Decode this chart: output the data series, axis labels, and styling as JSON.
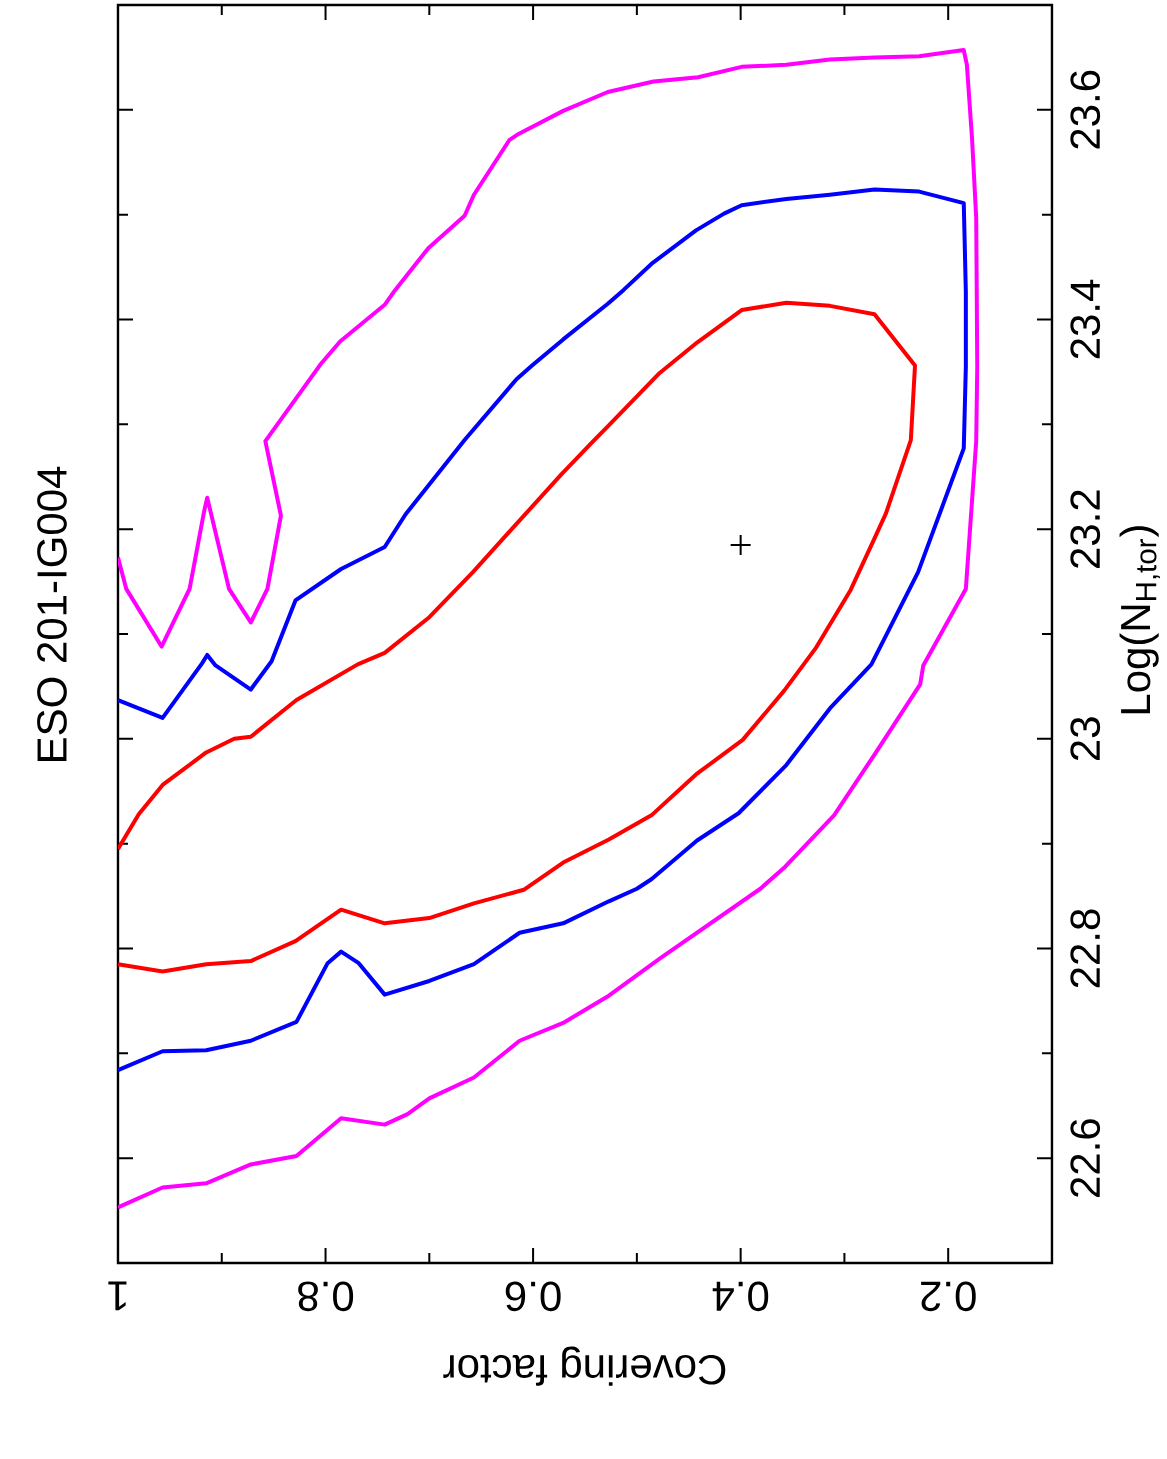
{
  "chart_data": {
    "type": "line",
    "title": "ESO 201-IG004",
    "xlabel": "Covering factor",
    "ylabel": "Log(N$_{H,tor}$)",
    "xlim": [
      1,
      0.1
    ],
    "ylim": [
      22.5,
      23.7
    ],
    "xticks": [
      1,
      {
        "value": 0.9,
        "label": null
      },
      0.8,
      {
        "value": 0.7,
        "label": null
      },
      0.6,
      {
        "value": 0.5,
        "label": null
      },
      0.4,
      {
        "value": 0.3,
        "label": null
      },
      0.2
    ],
    "yticks": [
      22.6,
      {
        "value": 22.7,
        "label": null
      },
      22.8,
      {
        "value": 22.9,
        "label": null
      },
      23,
      {
        "value": 23.1,
        "label": null
      },
      23.2,
      {
        "value": 23.3,
        "label": null
      },
      23.4,
      {
        "value": 23.5,
        "label": null
      },
      23.6
    ],
    "series": [
      {
        "color": "#ff0000",
        "values": [
          22.895,
          22.928,
          22.956,
          22.987,
          23.0,
          23.002,
          23.037,
          23.071,
          23.082,
          23.116,
          23.159,
          23.205,
          23.252,
          23.284,
          23.298,
          23.349,
          23.378,
          23.409,
          23.416,
          23.413,
          23.405,
          23.356,
          23.285,
          23.215,
          23.189,
          23.142,
          23.086,
          23.046,
          22.999,
          22.966,
          22.927,
          22.904,
          22.882,
          22.856,
          22.843,
          22.829,
          22.824,
          22.837,
          22.807,
          22.788,
          22.785,
          22.778,
          22.785
        ],
        "x": [
          1,
          0.98,
          0.957,
          0.915,
          0.888,
          0.872,
          0.828,
          0.769,
          0.743,
          0.7,
          0.658,
          0.616,
          0.573,
          0.542,
          0.528,
          0.478,
          0.442,
          0.399,
          0.356,
          0.314,
          0.271,
          0.232,
          0.236,
          0.26,
          0.272,
          0.294,
          0.328,
          0.358,
          0.398,
          0.443,
          0.486,
          0.527,
          0.571,
          0.609,
          0.657,
          0.7,
          0.743,
          0.785,
          0.829,
          0.872,
          0.915,
          0.957,
          1
        ]
      },
      {
        "color": "#0000ff",
        "values": [
          23.037,
          23.02,
          23.072,
          23.08,
          23.07,
          23.047,
          23.074,
          23.132,
          23.162,
          23.183,
          23.214,
          23.285,
          23.343,
          23.356,
          23.381,
          23.415,
          23.428,
          23.453,
          23.485,
          23.501,
          23.509,
          23.515,
          23.519,
          23.524,
          23.522,
          23.511,
          23.426,
          23.355,
          23.277,
          23.159,
          23.071,
          23.029,
          22.975,
          22.929,
          22.903,
          22.866,
          22.857,
          22.845,
          22.824,
          22.815,
          22.785,
          22.769,
          22.756,
          22.786,
          22.797,
          22.786,
          22.73,
          22.712,
          22.703,
          22.702,
          22.684
        ],
        "x": [
          1,
          0.957,
          0.919,
          0.914,
          0.906,
          0.872,
          0.852,
          0.829,
          0.785,
          0.743,
          0.723,
          0.666,
          0.616,
          0.601,
          0.571,
          0.528,
          0.513,
          0.486,
          0.443,
          0.416,
          0.399,
          0.356,
          0.314,
          0.271,
          0.228,
          0.185,
          0.183,
          0.183,
          0.185,
          0.229,
          0.274,
          0.314,
          0.356,
          0.402,
          0.442,
          0.486,
          0.5,
          0.527,
          0.571,
          0.613,
          0.657,
          0.7,
          0.743,
          0.768,
          0.785,
          0.798,
          0.828,
          0.872,
          0.915,
          0.957,
          1
        ]
      },
      {
        "color": "#ff00ff",
        "values": [
          23.173,
          23.143,
          23.088,
          23.143,
          23.217,
          23.23,
          23.143,
          23.111,
          23.143,
          23.213,
          23.284,
          23.357,
          23.379,
          23.414,
          23.428,
          23.468,
          23.499,
          23.519,
          23.571,
          23.577,
          23.599,
          23.617,
          23.627,
          23.631,
          23.641,
          23.643,
          23.648,
          23.65,
          23.651,
          23.657,
          23.643,
          23.572,
          23.497,
          23.355,
          23.284,
          23.143,
          23.07,
          23.052,
          22.985,
          22.927,
          22.878,
          22.857,
          22.791,
          22.755,
          22.729,
          22.712,
          22.677,
          22.657,
          22.642,
          22.632,
          22.638,
          22.602,
          22.594,
          22.576,
          22.572,
          22.553
        ],
        "x": [
          1,
          0.992,
          0.958,
          0.931,
          0.917,
          0.914,
          0.893,
          0.872,
          0.856,
          0.843,
          0.858,
          0.805,
          0.786,
          0.743,
          0.733,
          0.701,
          0.666,
          0.657,
          0.623,
          0.614,
          0.571,
          0.528,
          0.484,
          0.441,
          0.399,
          0.356,
          0.314,
          0.271,
          0.228,
          0.185,
          0.182,
          0.177,
          0.173,
          0.172,
          0.173,
          0.183,
          0.224,
          0.227,
          0.271,
          0.31,
          0.357,
          0.381,
          0.477,
          0.527,
          0.571,
          0.613,
          0.657,
          0.7,
          0.721,
          0.743,
          0.785,
          0.828,
          0.872,
          0.915,
          0.957,
          1
        ]
      },
      {
        "type": "scatter",
        "marker": "cross",
        "color": "#000000",
        "x": [
          0.4
        ],
        "values": [
          23.185
        ]
      }
    ]
  }
}
